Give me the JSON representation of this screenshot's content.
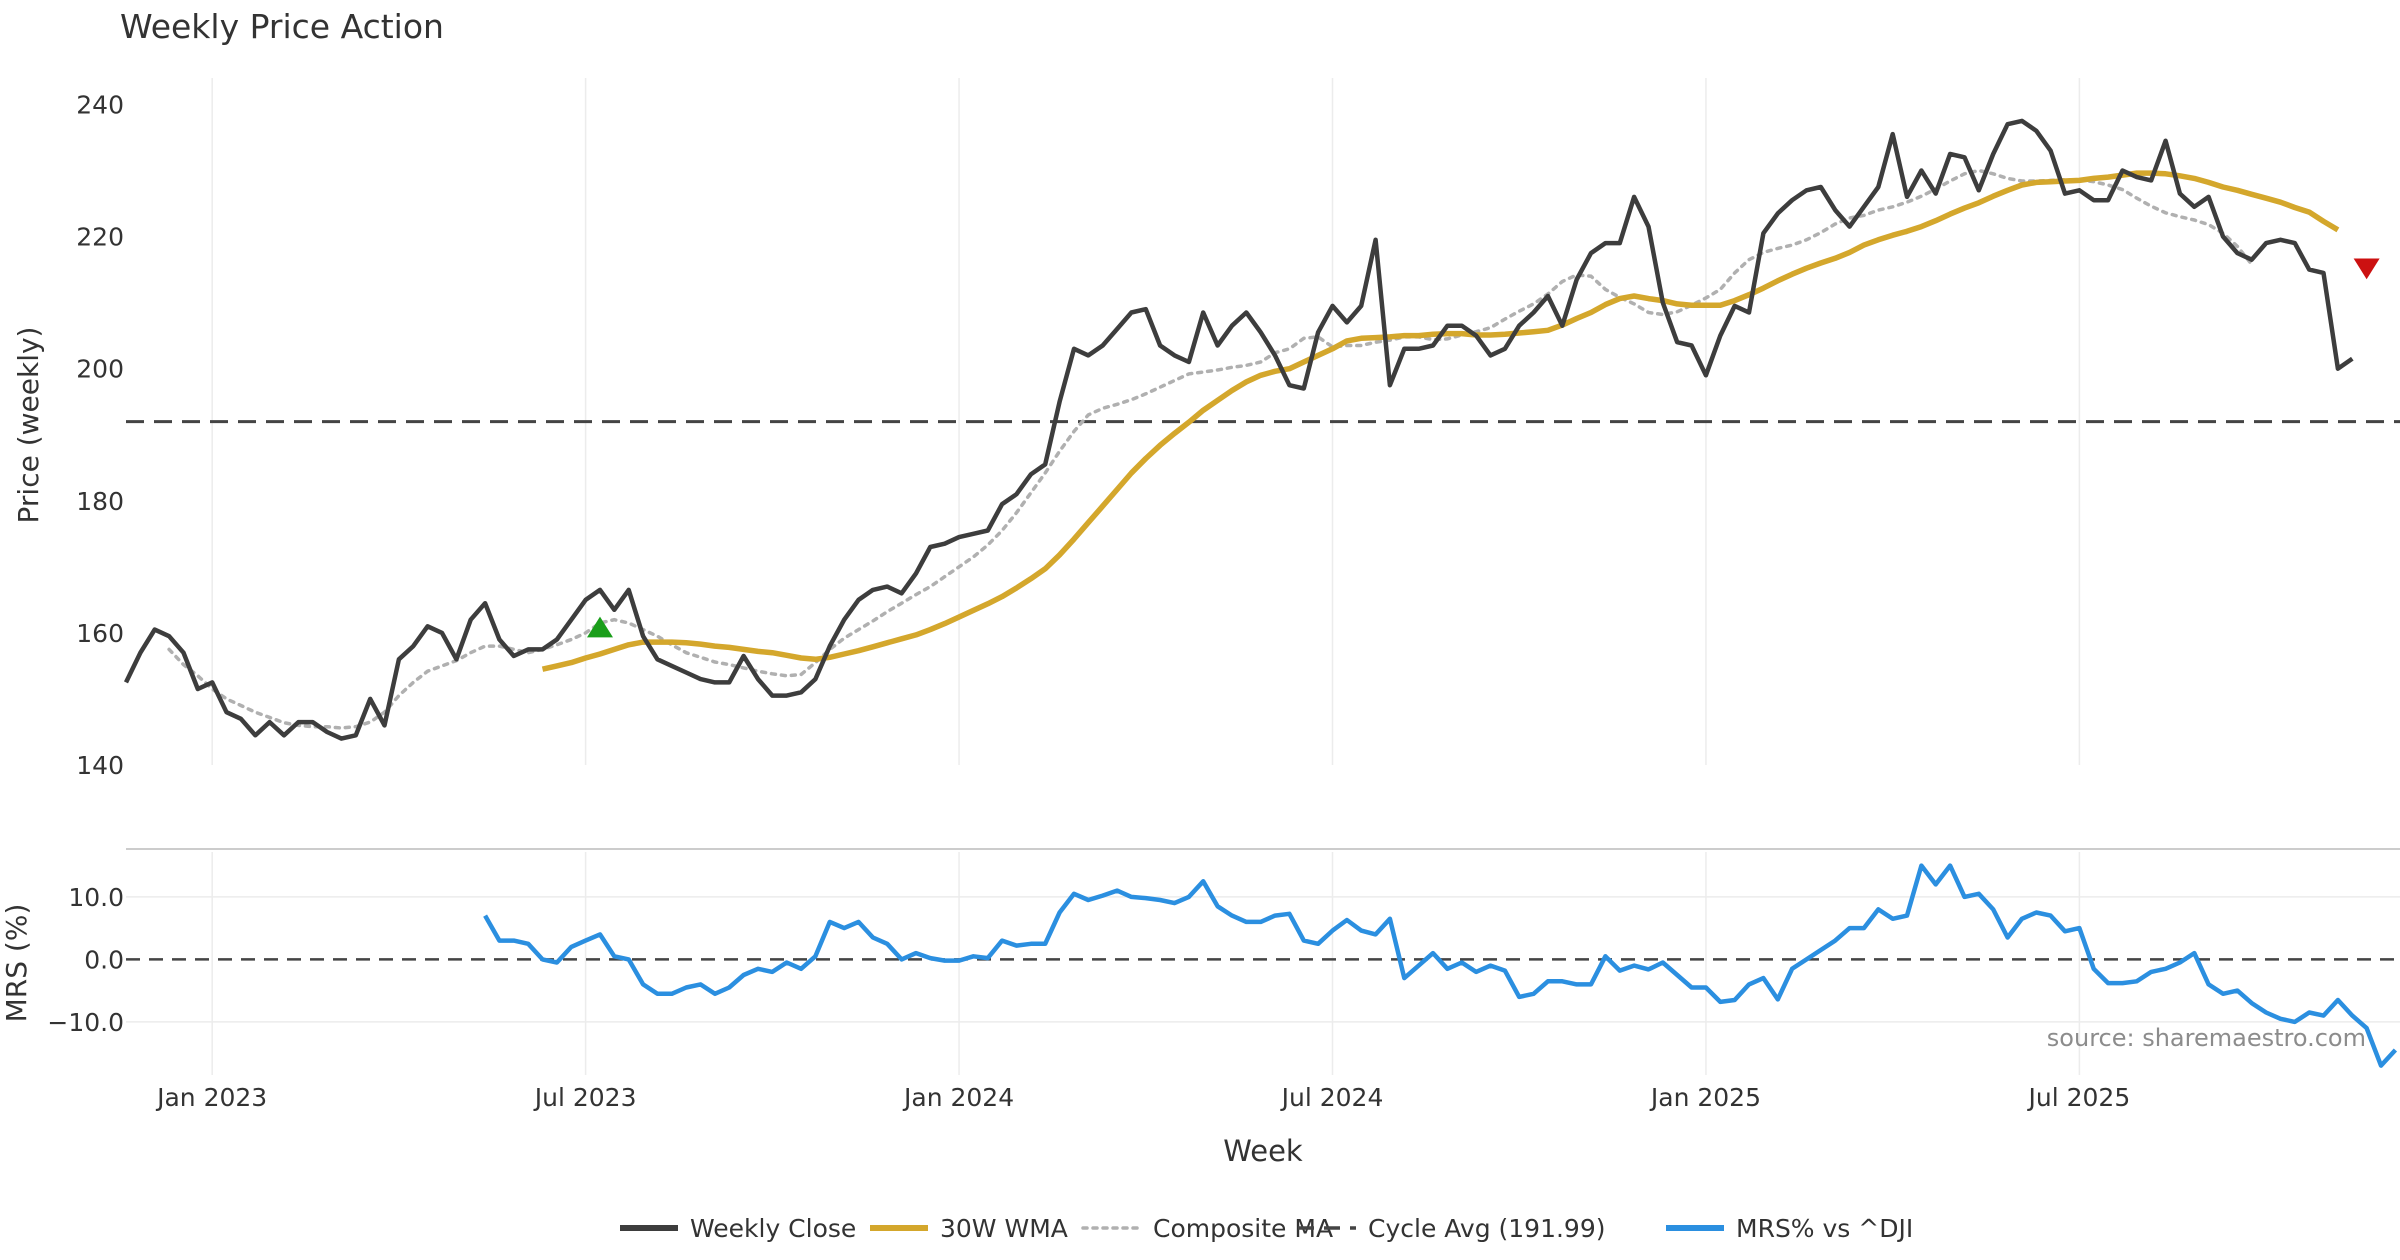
{
  "chart_data": {
    "type": "line",
    "title": "Weekly Price Action",
    "xlabel": "Week",
    "source": "source: sharemaestro.com",
    "x_ticks": [
      "Jan 2023",
      "Jul 2023",
      "Jan 2024",
      "Jul 2024",
      "Jan 2025",
      "Jul 2025"
    ],
    "x_tick_weeks": [
      6,
      32,
      58,
      84,
      110,
      136
    ],
    "price_panel": {
      "ylabel": "Price (weekly)",
      "ylim": [
        140,
        244
      ],
      "yticks": [
        140,
        160,
        180,
        200,
        220,
        240
      ],
      "series": [
        {
          "name": "Weekly Close",
          "color": "#3d3d3d",
          "start_week": 0,
          "values": [
            152.5,
            157,
            160.5,
            159.5,
            157,
            151.5,
            152.5,
            148,
            147,
            144.5,
            146.5,
            144.5,
            146.5,
            146.5,
            145,
            144,
            144.5,
            150,
            146,
            156,
            158,
            161,
            160,
            156,
            162,
            164.5,
            159,
            156.5,
            157.5,
            157.5,
            159,
            162,
            165,
            166.5,
            163.5,
            166.5,
            159.5,
            156,
            155,
            154,
            153,
            152.5,
            152.5,
            156.5,
            153,
            150.5,
            150.5,
            151,
            153,
            158,
            162,
            165,
            166.5,
            167,
            166,
            169,
            173,
            173.5,
            174.5,
            175,
            175.5,
            179.5,
            181,
            184,
            185.5,
            195,
            203,
            202,
            203.5,
            206,
            208.5,
            209,
            203.5,
            202,
            201,
            208.5,
            203.5,
            206.5,
            208.5,
            205.5,
            202,
            197.5,
            197,
            205.5,
            209.5,
            207,
            209.5,
            219.5,
            197.5,
            203,
            203,
            203.5,
            206.5,
            206.5,
            205,
            202,
            203,
            206.5,
            208.5,
            211,
            206.5,
            213.5,
            217.5,
            219,
            219,
            226,
            221.5,
            210,
            204,
            203.5,
            199,
            205,
            209.5,
            208.5,
            220.5,
            223.5,
            225.5,
            227,
            227.5,
            224,
            221.5,
            224.5,
            227.5,
            235.5,
            226,
            230,
            226.5,
            232.5,
            232,
            227,
            232.5,
            237,
            237.5,
            236,
            233,
            226.5,
            227,
            225.5,
            225.5,
            230,
            229,
            228.5,
            234.5,
            226.5,
            224.5,
            226,
            220,
            217.5,
            216.5,
            219,
            219.5,
            219,
            215,
            214.5,
            200,
            201.5
          ]
        },
        {
          "name": "30W WMA",
          "color": "#d4a72c",
          "start_week": 29,
          "values": [
            154.5,
            155,
            155.5,
            156.2,
            156.8,
            157.5,
            158.2,
            158.6,
            158.6,
            158.6,
            158.5,
            158.3,
            158,
            157.8,
            157.5,
            157.2,
            157,
            156.6,
            156.2,
            156,
            156.3,
            156.8,
            157.3,
            157.9,
            158.5,
            159.1,
            159.7,
            160.5,
            161.4,
            162.4,
            163.4,
            164.4,
            165.5,
            166.8,
            168.2,
            169.7,
            171.8,
            174.2,
            176.7,
            179.2,
            181.7,
            184.2,
            186.4,
            188.4,
            190.2,
            191.9,
            193.7,
            195.2,
            196.7,
            198,
            199,
            199.6,
            200,
            201,
            202,
            203,
            204.2,
            204.6,
            204.7,
            204.8,
            205,
            205,
            205.2,
            205.3,
            205.3,
            205.1,
            205.1,
            205.2,
            205.4,
            205.6,
            205.8,
            206.6,
            207.6,
            208.5,
            209.7,
            210.6,
            211,
            210.6,
            210.3,
            209.8,
            209.6,
            209.6,
            209.6,
            210.3,
            211.2,
            212.2,
            213.3,
            214.3,
            215.2,
            216,
            216.7,
            217.6,
            218.7,
            219.5,
            220.2,
            220.8,
            221.5,
            222.4,
            223.4,
            224.3,
            225.1,
            226.1,
            227,
            227.8,
            228.2,
            228.3,
            228.4,
            228.5,
            228.8,
            229,
            229.3,
            229.6,
            229.6,
            229.5,
            229.2,
            228.8,
            228.2,
            227.5,
            227,
            226.4,
            225.8,
            225.2,
            224.4,
            223.7,
            222.3,
            221
          ]
        },
        {
          "name": "Composite MA",
          "color": "#b0b0b0",
          "start_week": 3,
          "values": [
            157.5,
            155.2,
            153.5,
            151.5,
            150,
            149,
            148,
            147.2,
            146.4,
            146,
            145.8,
            145.8,
            145.6,
            145.8,
            146.5,
            148,
            150.5,
            152.5,
            154.2,
            155,
            155.8,
            157,
            158,
            158,
            157.5,
            157,
            157.5,
            158.2,
            159,
            160,
            161.5,
            162,
            161.5,
            160.5,
            159.5,
            158.2,
            157,
            156.3,
            155.6,
            155.2,
            154.7,
            154.2,
            153.8,
            153.5,
            153.7,
            155.5,
            157.5,
            159.2,
            160.5,
            161.8,
            163.2,
            164.5,
            165.8,
            167,
            168.5,
            170,
            171.5,
            173.3,
            175.5,
            178.2,
            181.2,
            184.2,
            187.5,
            190.5,
            193,
            194,
            194.6,
            195.3,
            196.2,
            197.2,
            198.2,
            199.2,
            199.5,
            199.8,
            200.2,
            200.5,
            201,
            202.4,
            203,
            204.6,
            204.8,
            203.3,
            203.5,
            203.5,
            204,
            204.3,
            204.8,
            204.8,
            204.4,
            204.5,
            205.1,
            205.6,
            206.2,
            207.5,
            208.7,
            209.8,
            211.3,
            213.2,
            214.2,
            214,
            212,
            210.8,
            209.8,
            208.5,
            208.2,
            208.6,
            209.6,
            210.7,
            212,
            214.5,
            216.5,
            217.6,
            218.2,
            218.7,
            219.5,
            220.6,
            221.9,
            222.8,
            223.2,
            224,
            224.5,
            225.2,
            226.1,
            227.2,
            228.4,
            229.5,
            230,
            229.5,
            228.8,
            228.4,
            228.4,
            228.5,
            228.6,
            228.6,
            228.3,
            227.8,
            227.1,
            225.8,
            224.6,
            223.6,
            223,
            222.5,
            221.8,
            220.5,
            218.5,
            215.8
          ]
        }
      ],
      "cycle_avg": {
        "name": "Cycle Avg (191.99)",
        "value": 191.99,
        "color": "#555555"
      },
      "markers": [
        {
          "type": "buy",
          "week": 33,
          "value": 160.5,
          "color": "#1a9e1a"
        },
        {
          "type": "sell",
          "week": 156,
          "value": 215.5,
          "color": "#cc1111"
        }
      ]
    },
    "mrs_panel": {
      "ylabel": "MRS (%)",
      "ylim": [
        -18.5,
        17.5
      ],
      "yticks": [
        10.0,
        0.0,
        -10.0
      ],
      "ytick_labels": [
        "10.0",
        "0.0",
        "−10.0"
      ],
      "series": {
        "name": "MRS% vs ^DJI",
        "color": "#2b8fe0",
        "start_week": 25,
        "values": [
          7,
          3,
          3,
          2.5,
          0,
          -0.5,
          2,
          3,
          4,
          0.5,
          0,
          -4,
          -5.5,
          -5.5,
          -4.5,
          -4,
          -5.5,
          -4.5,
          -2.5,
          -1.5,
          -2,
          -0.5,
          -1.5,
          0.5,
          6,
          5,
          6,
          3.5,
          2.5,
          0,
          1,
          0.2,
          -0.2,
          -0.2,
          0.5,
          0.2,
          3,
          2.2,
          2.5,
          2.5,
          7.5,
          10.5,
          9.5,
          10.2,
          11,
          10,
          9.8,
          9.5,
          9,
          10,
          12.5,
          8.5,
          7,
          6,
          6,
          7,
          7.3,
          3,
          2.5,
          4.6,
          6.3,
          4.6,
          4,
          6.5,
          -3,
          -1,
          1,
          -1.5,
          -0.5,
          -2,
          -1,
          -1.8,
          -6,
          -5.5,
          -3.5,
          -3.5,
          -4,
          -4,
          0.5,
          -1.8,
          -1,
          -1.6,
          -0.5,
          -2.5,
          -4.5,
          -4.5,
          -6.8,
          -6.5,
          -4,
          -3,
          -6.4,
          -1.5,
          0,
          1.5,
          3,
          5,
          5,
          8,
          6.5,
          7,
          15,
          12,
          15,
          10,
          10.5,
          8,
          3.5,
          6.5,
          7.5,
          7,
          4.5,
          5,
          -1.5,
          -3.8,
          -3.8,
          -3.5,
          -2,
          -1.5,
          -0.5,
          1,
          -4,
          -5.5,
          -5,
          -7,
          -8.5,
          -9.5,
          -10,
          -8.5,
          -9,
          -6.5,
          -9,
          -11,
          -17,
          -14.5
        ]
      },
      "zero_line": 0
    },
    "legend": [
      {
        "label": "Weekly Close",
        "color": "#3d3d3d",
        "style": "solid"
      },
      {
        "label": "30W WMA",
        "color": "#d4a72c",
        "style": "solid"
      },
      {
        "label": "Composite MA",
        "color": "#b0b0b0",
        "style": "dotted"
      },
      {
        "label": "Cycle Avg (191.99)",
        "color": "#444444",
        "style": "dashed"
      },
      {
        "label": "MRS% vs ^DJI",
        "color": "#2b8fe0",
        "style": "solid"
      }
    ],
    "legend_position": "bottom-center"
  }
}
